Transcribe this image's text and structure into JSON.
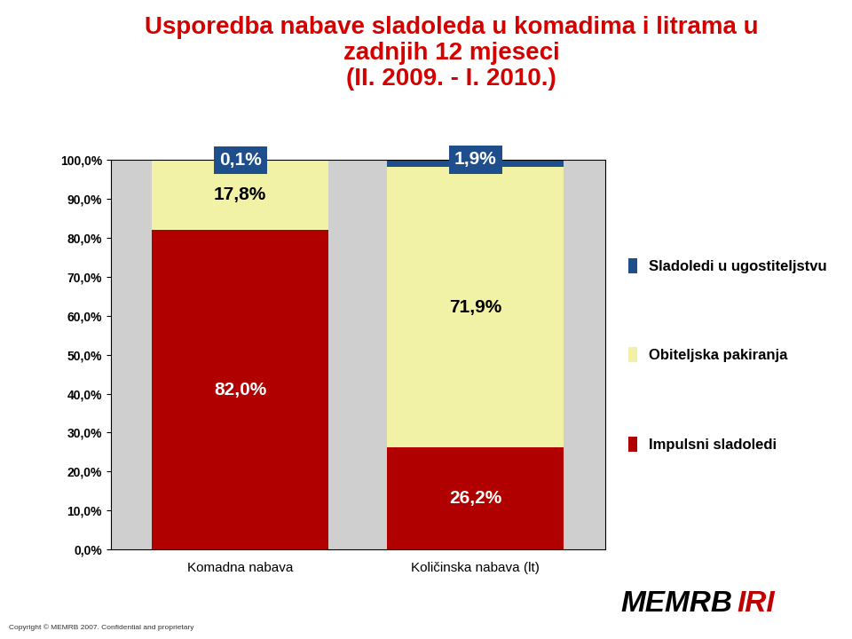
{
  "chart_data": {
    "type": "bar",
    "stacked": true,
    "title": "Usporedba nabave sladoleda u komadima i litrama u\nzadnjih 12 mjeseci\n(II. 2009. - I. 2010.)",
    "categories": [
      "Komadna nabava",
      "Količinska nabava (lt)"
    ],
    "series": [
      {
        "name": "Impulsni sladoledi",
        "color": "#b00000",
        "values": [
          82.0,
          26.2
        ],
        "value_labels": [
          "82,0%",
          "26,2%"
        ]
      },
      {
        "name": "Obiteljska pakiranja",
        "color": "#f2f2a6",
        "values": [
          17.8,
          71.9
        ],
        "value_labels": [
          "17,8%",
          "71,9%"
        ]
      },
      {
        "name": "Sladoledi u ugostiteljstvu",
        "color": "#1f4e8c",
        "values": [
          0.1,
          1.9
        ],
        "value_labels": [
          "0,1%",
          "1,9%"
        ]
      }
    ],
    "ylim": [
      0,
      100
    ],
    "yticks": [
      {
        "value": 0,
        "label": "0,0%"
      },
      {
        "value": 10,
        "label": "10,0%"
      },
      {
        "value": 20,
        "label": "20,0%"
      },
      {
        "value": 30,
        "label": "30,0%"
      },
      {
        "value": 40,
        "label": "40,0%"
      },
      {
        "value": 50,
        "label": "50,0%"
      },
      {
        "value": 60,
        "label": "60,0%"
      },
      {
        "value": 70,
        "label": "70,0%"
      },
      {
        "value": 80,
        "label": "80,0%"
      },
      {
        "value": 90,
        "label": "90,0%"
      },
      {
        "value": 100,
        "label": "100,0%"
      }
    ],
    "grid": false,
    "data_labels": true,
    "legend": "right",
    "annotations": [
      "Copyright © MEMRB 2007. Confidential and proprietary",
      "MEMRB",
      "IRI"
    ]
  }
}
